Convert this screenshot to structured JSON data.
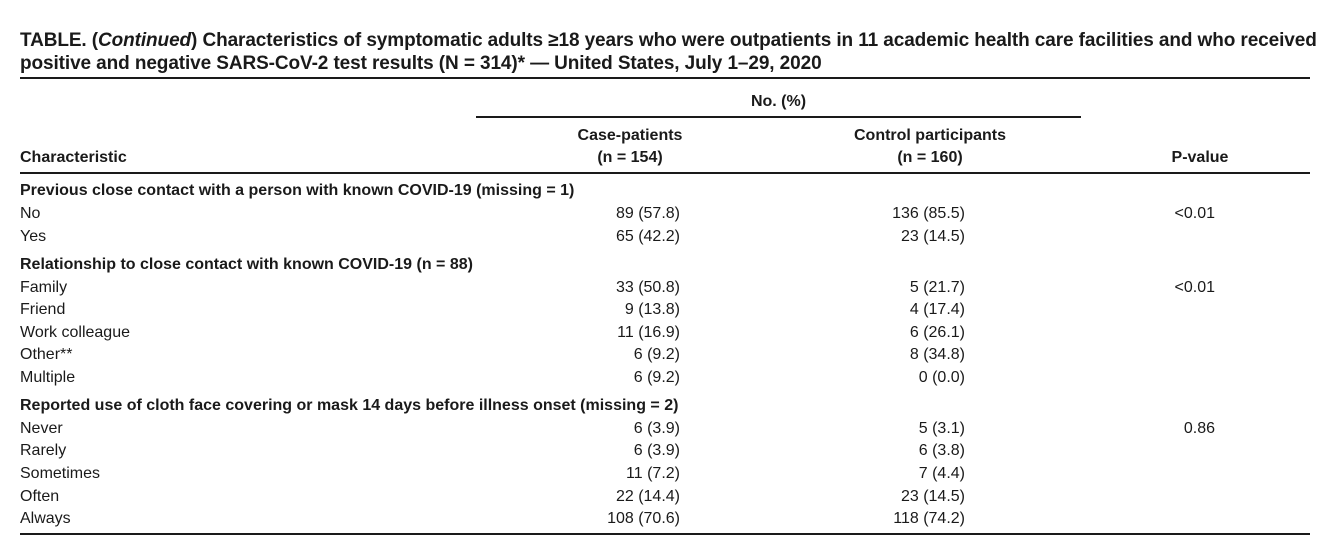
{
  "table": {
    "title_prefix": "TABLE. (",
    "title_italic": "Continued",
    "title_rest": ") Characteristics of symptomatic adults ≥18 years who were outpatients in 11 academic health care facilities and who received positive and negative SARS-CoV-2 test results (N = 314)* — United States, July 1–29, 2020",
    "spanner": "No. (%)",
    "headers": {
      "characteristic": "Characteristic",
      "case_label": "Case-patients",
      "case_n": "(n = 154)",
      "control_label": "Control participants",
      "control_n": "(n = 160)",
      "pvalue": "P-value"
    },
    "rows": [
      {
        "label": "Previous close contact with a person with known COVID-19 (missing = 1)",
        "case": "",
        "control": "",
        "p": ""
      },
      {
        "label": "No",
        "case": "89 (57.8)",
        "control": "136 (85.5)",
        "p": "<0.01"
      },
      {
        "label": "Yes",
        "case": "65 (42.2)",
        "control": "23 (14.5)",
        "p": ""
      },
      {
        "label": "Relationship to close contact with known COVID-19 (n = 88)",
        "case": "",
        "control": "",
        "p": ""
      },
      {
        "label": "Family",
        "case": "33 (50.8)",
        "control": "5 (21.7)",
        "p": "<0.01"
      },
      {
        "label": "Friend",
        "case": "9 (13.8)",
        "control": "4 (17.4)",
        "p": ""
      },
      {
        "label": "Work colleague",
        "case": "11 (16.9)",
        "control": "6 (26.1)",
        "p": ""
      },
      {
        "label": "Other**",
        "case": "6 (9.2)",
        "control": "8 (34.8)",
        "p": ""
      },
      {
        "label": "Multiple",
        "case": "6 (9.2)",
        "control": "0 (0.0)",
        "p": ""
      },
      {
        "label": "Reported use of cloth face covering or mask 14 days before illness onset (missing = 2)",
        "case": "",
        "control": "",
        "p": ""
      },
      {
        "label": "Never",
        "case": "6 (3.9)",
        "control": "5 (3.1)",
        "p": "0.86"
      },
      {
        "label": "Rarely",
        "case": "6 (3.9)",
        "control": "6 (3.8)",
        "p": ""
      },
      {
        "label": "Sometimes",
        "case": "11 (7.2)",
        "control": "7 (4.4)",
        "p": ""
      },
      {
        "label": "Often",
        "case": "22 (14.4)",
        "control": "23 (14.5)",
        "p": ""
      },
      {
        "label": "Always",
        "case": "108 (70.6)",
        "control": "118 (74.2)",
        "p": ""
      }
    ]
  }
}
